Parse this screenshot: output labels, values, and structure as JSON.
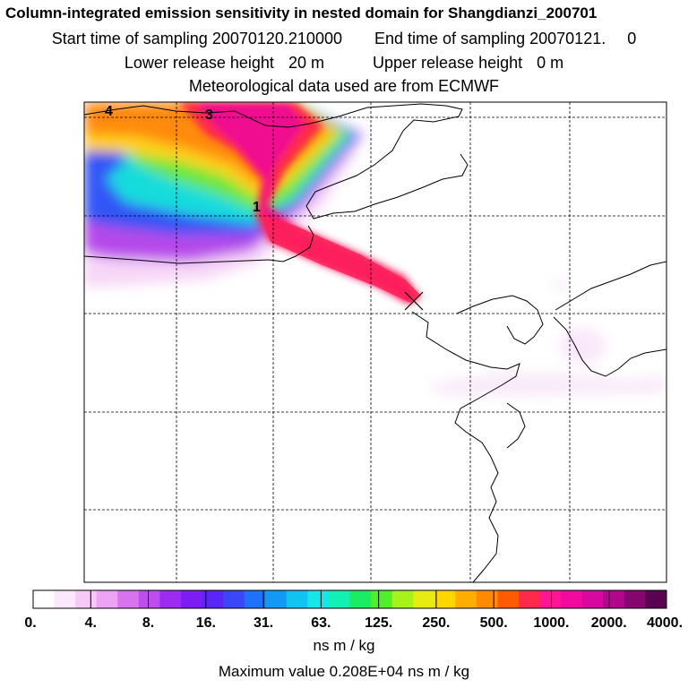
{
  "title": "Column-integrated emission sensitivity in nested domain for Shangdianzi_200701",
  "sampling": {
    "start_label": "Start time of sampling",
    "start_value": "20070120.210000",
    "end_label": "End time of sampling",
    "end_value": "20070121.",
    "end_extra": "0"
  },
  "release": {
    "lower_label": "Lower release height",
    "lower_value": "20 m",
    "upper_label": "Upper release height",
    "upper_value": "0 m"
  },
  "met_note": "Meteorological data used are from ECMWF",
  "map_labels": [
    "4",
    "3",
    "1"
  ],
  "colorbar": {
    "ticks": [
      "0.",
      "4.",
      "8.",
      "16.",
      "31.",
      "63.",
      "125.",
      "250.",
      "500.",
      "1000.",
      "2000.",
      "4000."
    ],
    "colors": [
      "#ffffff",
      "#fce8fc",
      "#f7c9f7",
      "#eda2f3",
      "#d873ee",
      "#bd4ded",
      "#9d2cf0",
      "#7d1df3",
      "#5a26f5",
      "#3a46f7",
      "#1e72f7",
      "#1199f5",
      "#10c3f0",
      "#16e6e6",
      "#12f0b4",
      "#1aec64",
      "#4ff028",
      "#a6f21a",
      "#e6ec12",
      "#ffd600",
      "#ffae00",
      "#ff8a00",
      "#ff5a00",
      "#ff2a4a",
      "#ff1493",
      "#f20a9e",
      "#d6089e",
      "#b0078d",
      "#86066f",
      "#5a0350"
    ],
    "units": "ns m / kg"
  },
  "max_value": {
    "label": "Maximum value",
    "value": "0.208E+04",
    "units": "ns m / kg"
  }
}
